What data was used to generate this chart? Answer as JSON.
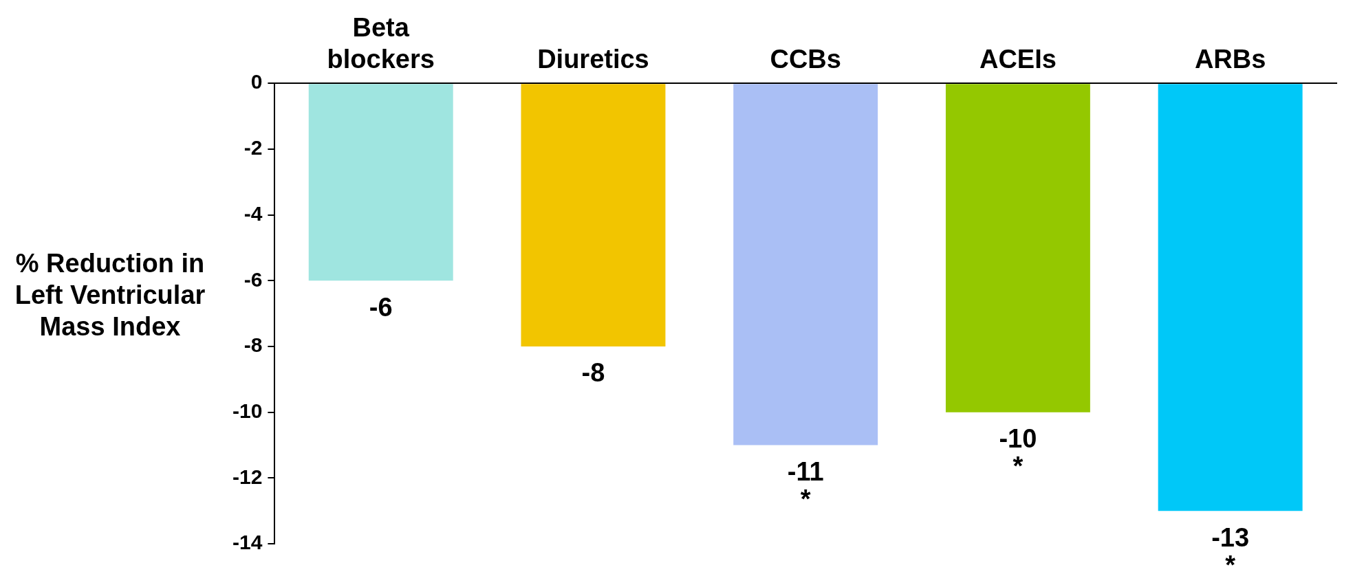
{
  "chart_data": {
    "type": "bar",
    "ylabel": "% Reduction in Left Ventricular Mass Index",
    "categories": [
      "Beta blockers",
      "Diuretics",
      "CCBs",
      "ACEIs",
      "ARBs"
    ],
    "values": [
      -6,
      -8,
      -11,
      -10,
      -13
    ],
    "colors": [
      "#9fe5e0",
      "#f2c500",
      "#aabff5",
      "#94c800",
      "#00c8f8"
    ],
    "ylim": [
      -14,
      0
    ],
    "yticks": [
      0,
      -2,
      -4,
      -6,
      -8,
      -10,
      -12,
      -14
    ],
    "data_labels": true,
    "grid": false,
    "legend": false,
    "annotations": [
      {
        "text": "*",
        "x": "CCBs",
        "y": -11
      },
      {
        "text": "*",
        "x": "ACEIs",
        "y": -10
      },
      {
        "text": "*",
        "x": "ARBs",
        "y": -13
      }
    ]
  }
}
